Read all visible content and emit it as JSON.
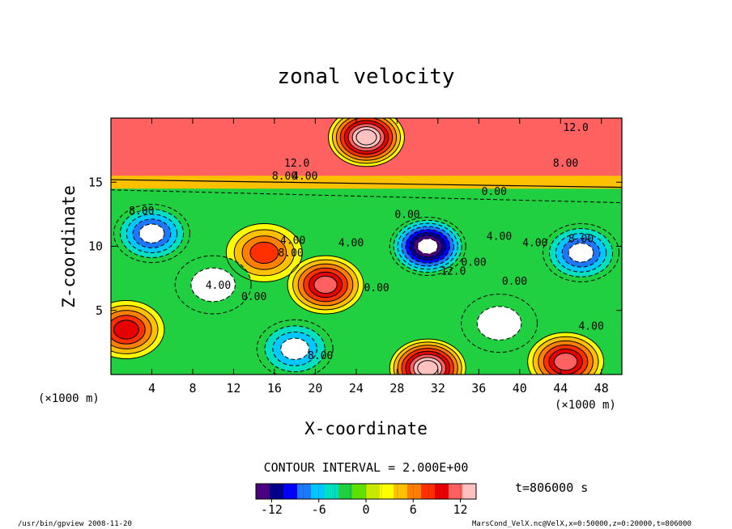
{
  "figure": {
    "title": "zonal velocity",
    "xlabel": "X-coordinate",
    "ylabel": "Z-coordinate",
    "x_unit": "(×1000 m)",
    "x_unit_right": "(×1000 m)",
    "contour_interval": "CONTOUR INTERVAL = 2.000E+00",
    "time_label": "t=806000 s",
    "footer_left": "/usr/bin/gpview  2008-11-20",
    "footer_right": "MarsCond_VelX.nc@VelX,x=0:50000,z=0:20000,t=806000"
  },
  "chart_data": {
    "type": "heatmap",
    "title": "zonal velocity",
    "xlabel": "X-coordinate",
    "ylabel": "Z-coordinate",
    "x_ticks": [
      4,
      8,
      12,
      16,
      20,
      24,
      28,
      32,
      36,
      40,
      44,
      48
    ],
    "y_ticks": [
      5,
      10,
      15
    ],
    "xlim": [
      0,
      50
    ],
    "ylim": [
      0,
      20
    ],
    "contour_interval": 2.0,
    "colorbar": {
      "ticks": [
        -12,
        -6,
        0,
        6,
        12
      ],
      "range": [
        -14,
        14
      ],
      "colors": [
        "#4b0082",
        "#00008b",
        "#0000ff",
        "#1e78ff",
        "#00c8ff",
        "#00e0c0",
        "#20d040",
        "#60e000",
        "#c8e800",
        "#ffff00",
        "#ffc000",
        "#ff8000",
        "#ff3000",
        "#e60000",
        "#ff6060",
        "#ffc0c0"
      ]
    },
    "features": [
      {
        "x": 25,
        "z": 18.5,
        "value": 16
      },
      {
        "x": 31,
        "z": 10,
        "value": -16
      },
      {
        "x": 4,
        "z": 11,
        "value": -10
      },
      {
        "x": 46,
        "z": 9.5,
        "value": -10
      },
      {
        "x": 21,
        "z": 7,
        "value": 12
      },
      {
        "x": 15,
        "z": 9.5,
        "value": 8
      },
      {
        "x": 1.5,
        "z": 3.5,
        "value": 10
      },
      {
        "x": 31,
        "z": 0.5,
        "value": 16
      },
      {
        "x": 44.5,
        "z": 1,
        "value": 12
      },
      {
        "x": 18,
        "z": 2,
        "value": -8
      },
      {
        "x": 10,
        "z": 7,
        "value": -4
      },
      {
        "x": 38,
        "z": 4,
        "value": -4
      }
    ],
    "contour_labels": [
      {
        "x": 18.2,
        "z": 16.2,
        "text": "12.0"
      },
      {
        "x": 45.5,
        "z": 19.0,
        "text": "12.0"
      },
      {
        "x": 44.5,
        "z": 16.2,
        "text": "8.00"
      },
      {
        "x": 17.0,
        "z": 15.2,
        "text": "8.00"
      },
      {
        "x": 19.0,
        "z": 15.2,
        "text": "4.00"
      },
      {
        "x": 37.5,
        "z": 14.0,
        "text": "0.00"
      },
      {
        "x": 29.0,
        "z": 12.2,
        "text": "0.00"
      },
      {
        "x": 3.0,
        "z": 12.5,
        "text": "8.00"
      },
      {
        "x": 17.8,
        "z": 10.2,
        "text": "4.00"
      },
      {
        "x": 17.6,
        "z": 9.2,
        "text": "8.00"
      },
      {
        "x": 23.5,
        "z": 10.0,
        "text": "4.00"
      },
      {
        "x": 38.0,
        "z": 10.5,
        "text": "4.00"
      },
      {
        "x": 35.5,
        "z": 8.5,
        "text": "0.00"
      },
      {
        "x": 33.5,
        "z": 7.8,
        "text": "12.0"
      },
      {
        "x": 46.0,
        "z": 10.3,
        "text": "8.00"
      },
      {
        "x": 41.5,
        "z": 10.0,
        "text": "4.00"
      },
      {
        "x": 39.5,
        "z": 7.0,
        "text": "0.00"
      },
      {
        "x": 10.5,
        "z": 6.7,
        "text": "4.00"
      },
      {
        "x": 14.0,
        "z": 5.8,
        "text": "0.00"
      },
      {
        "x": 26.0,
        "z": 6.5,
        "text": "0.00"
      },
      {
        "x": 20.5,
        "z": 1.2,
        "text": "8.00"
      },
      {
        "x": 47.0,
        "z": 3.5,
        "text": "4.00"
      }
    ]
  }
}
